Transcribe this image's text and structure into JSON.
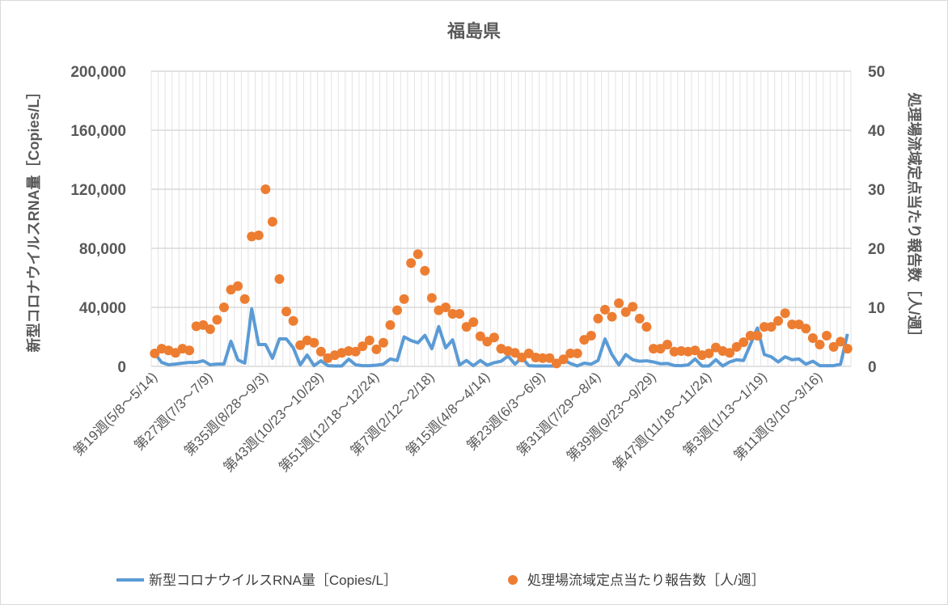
{
  "chart_data": {
    "type": "line+scatter",
    "title": "福島県",
    "ylabel_left": "新型コロナウイルスRNA量［Copies/L］",
    "ylabel_right": "処理場流域定点当たり報告数［人/週］",
    "ylim_left": [
      0,
      200000
    ],
    "ylim_right": [
      0,
      50
    ],
    "yticks_left": [
      "0",
      "40,000",
      "80,000",
      "120,000",
      "160,000",
      "200,000"
    ],
    "yticks_right": [
      "0",
      "10",
      "20",
      "30",
      "40",
      "50"
    ],
    "x_tick_labels": [
      "第19週(5/8～5/14)",
      "第27週(7/3～7/9)",
      "第35週(8/28～9/3)",
      "第43週(10/23～10/29)",
      "第51週(12/18～12/24)",
      "第7週(2/12～2/18)",
      "第15週(4/8～4/14)",
      "第23週(6/3～6/9)",
      "第31週(7/29～8/4)",
      "第39週(9/23～9/29)",
      "第47週(11/18～11/24)",
      "第3週(1/13～1/19)",
      "第11週(3/10～3/16)"
    ],
    "x_tick_every": 8,
    "grid": true,
    "legend": "bottom",
    "colors": {
      "rna": "#5B9BD5",
      "reports": "#ED7D31"
    },
    "series": [
      {
        "name": "新型コロナウイルスRNA量［Copies/L］",
        "type": "line",
        "axis": "left",
        "values": [
          8800,
          2700,
          1100,
          1600,
          2200,
          2700,
          2700,
          3800,
          1100,
          1600,
          1600,
          17000,
          4400,
          2200,
          39000,
          14800,
          14800,
          5500,
          18600,
          18600,
          12600,
          1000,
          7700,
          500,
          3800,
          500,
          300,
          300,
          4900,
          1100,
          500,
          500,
          800,
          1500,
          5000,
          4000,
          20000,
          17500,
          16000,
          21000,
          12000,
          27000,
          12600,
          18000,
          1000,
          4000,
          500,
          4000,
          800,
          2500,
          3500,
          7000,
          1500,
          6000,
          500,
          300,
          300,
          300,
          300,
          4500,
          2000,
          300,
          2200,
          1500,
          4000,
          18600,
          8000,
          1000,
          8000,
          4500,
          3500,
          3800,
          3000,
          1800,
          2000,
          600,
          500,
          1000,
          5000,
          300,
          300,
          4500,
          300,
          3000,
          4500,
          4000,
          15000,
          26000,
          8000,
          6500,
          3000,
          6500,
          4500,
          5000,
          1500,
          3500,
          500,
          500,
          500,
          1500,
          22000
        ]
      },
      {
        "name": "処理場流域定点当たり報告数［人/週］",
        "type": "scatter",
        "axis": "right",
        "values": [
          2.2,
          3.0,
          2.7,
          2.3,
          3.0,
          2.7,
          6.8,
          7.0,
          6.3,
          7.9,
          10.0,
          13.0,
          13.6,
          11.4,
          22.0,
          22.2,
          30.0,
          24.5,
          14.8,
          9.3,
          7.7,
          3.6,
          4.4,
          4.0,
          2.5,
          1.4,
          1.9,
          2.3,
          2.6,
          2.5,
          3.4,
          4.4,
          2.9,
          4.0,
          7.0,
          9.5,
          11.4,
          17.5,
          19.0,
          16.2,
          11.6,
          9.5,
          10.0,
          8.9,
          8.9,
          6.7,
          7.5,
          5.1,
          4.2,
          4.9,
          3.0,
          2.6,
          2.3,
          1.5,
          2.2,
          1.5,
          1.4,
          1.4,
          0.5,
          1.2,
          2.2,
          2.2,
          4.5,
          5.2,
          8.1,
          9.6,
          8.4,
          10.7,
          9.2,
          10.1,
          8.1,
          6.7,
          3.0,
          3.0,
          3.7,
          2.5,
          2.6,
          2.5,
          2.7,
          1.9,
          2.2,
          3.2,
          2.6,
          2.3,
          3.3,
          4.1,
          5.2,
          5.2,
          6.7,
          6.7,
          7.7,
          9.0,
          7.1,
          7.1,
          6.4,
          4.8,
          3.7,
          5.2,
          3.3,
          4.2,
          3.0
        ]
      }
    ]
  }
}
